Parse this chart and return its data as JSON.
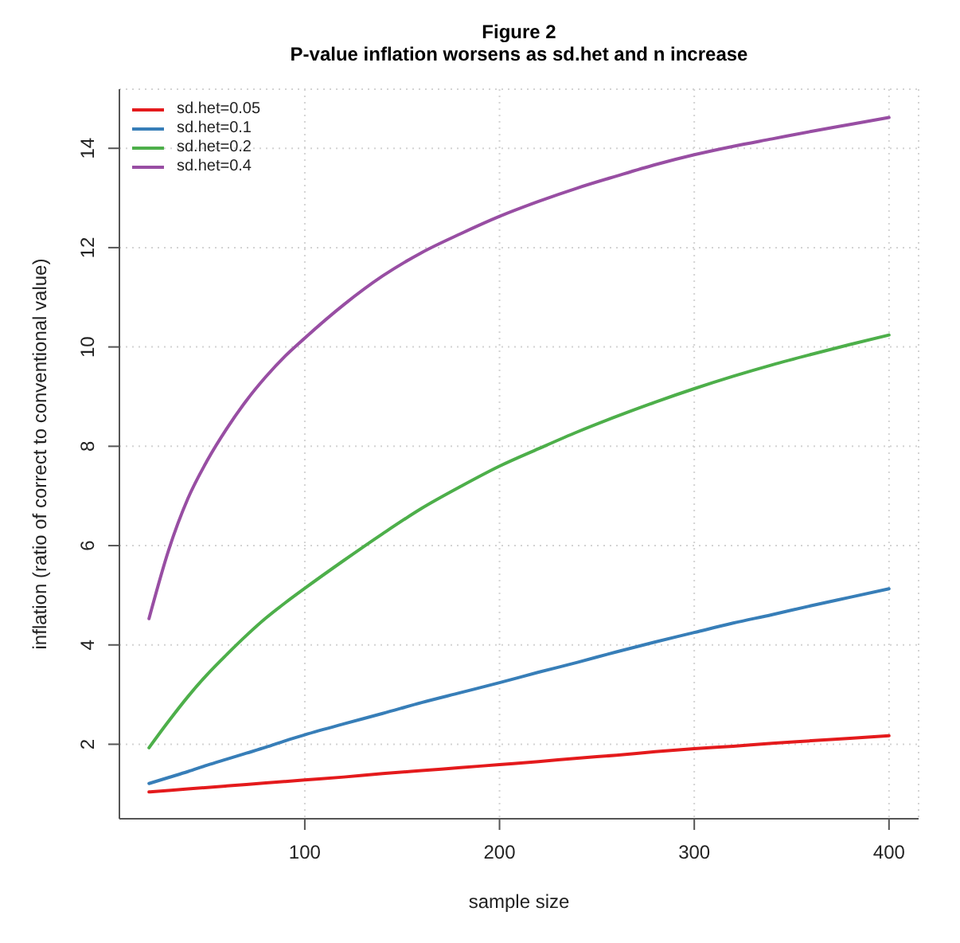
{
  "chart_data": {
    "type": "line",
    "title": "Figure 2",
    "subtitle": "P-value inflation worsens as sd.het and n increase",
    "xlabel": "sample size",
    "ylabel": "inflation (ratio of correct to conventional value)",
    "x": [
      20,
      30,
      40,
      50,
      60,
      70,
      80,
      90,
      100,
      120,
      140,
      160,
      180,
      200,
      220,
      240,
      260,
      280,
      300,
      320,
      340,
      360,
      380,
      400
    ],
    "series": [
      {
        "name": "sd.het=0.05",
        "color": "#e41a1c",
        "values": [
          1.04,
          1.07,
          1.1,
          1.13,
          1.16,
          1.19,
          1.22,
          1.25,
          1.28,
          1.34,
          1.41,
          1.47,
          1.53,
          1.59,
          1.65,
          1.72,
          1.78,
          1.85,
          1.91,
          1.96,
          2.02,
          2.07,
          2.12,
          2.17
        ]
      },
      {
        "name": "sd.het=0.1",
        "color": "#377eb8",
        "values": [
          1.21,
          1.33,
          1.45,
          1.58,
          1.7,
          1.82,
          1.94,
          2.07,
          2.19,
          2.41,
          2.62,
          2.84,
          3.04,
          3.24,
          3.45,
          3.65,
          3.86,
          4.06,
          4.25,
          4.44,
          4.61,
          4.79,
          4.96,
          5.13
        ]
      },
      {
        "name": "sd.het=0.2",
        "color": "#4daf4a",
        "values": [
          1.93,
          2.46,
          2.96,
          3.41,
          3.81,
          4.19,
          4.54,
          4.85,
          5.14,
          5.7,
          6.24,
          6.75,
          7.19,
          7.6,
          7.95,
          8.29,
          8.6,
          8.89,
          9.16,
          9.41,
          9.64,
          9.85,
          10.05,
          10.24
        ]
      },
      {
        "name": "sd.het=0.4",
        "color": "#984ea3",
        "values": [
          4.53,
          5.9,
          6.95,
          7.72,
          8.36,
          8.92,
          9.4,
          9.82,
          10.18,
          10.85,
          11.43,
          11.9,
          12.28,
          12.63,
          12.93,
          13.2,
          13.44,
          13.67,
          13.87,
          14.04,
          14.19,
          14.34,
          14.48,
          14.62
        ]
      }
    ],
    "xlim": [
      4.8,
      415.2
    ],
    "xticks": [
      100,
      200,
      300,
      400
    ],
    "ylim": [
      0.5,
      15.19
    ],
    "yticks": [
      2,
      4,
      6,
      8,
      10,
      12,
      14
    ],
    "grid": true,
    "legend": "top left",
    "marker": "none",
    "line_style": "solid"
  }
}
